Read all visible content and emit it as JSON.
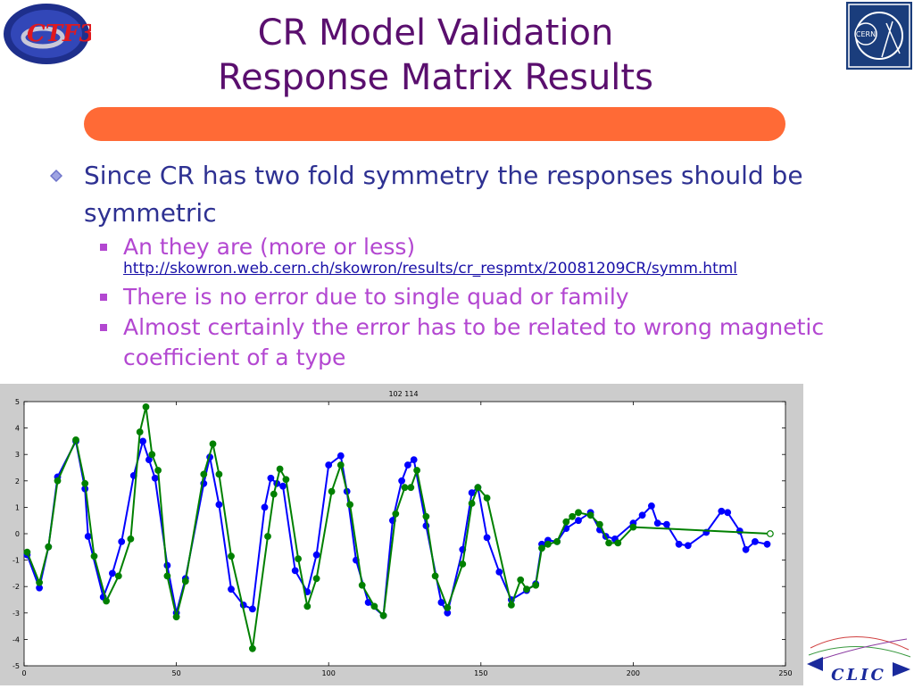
{
  "slide": {
    "title_line1": "CR Model Validation",
    "title_line2": "Response Matrix Results",
    "bullets": {
      "main": "Since CR has two fold symmetry the responses should be symmetric",
      "sub1": "An they are (more or less)",
      "sub1_link": "http://skowron.web.cern.ch/skowron/results/cr_respmtx/20081209CR/symm.html",
      "sub2": "There is no error due to single quad or family",
      "sub3": "Almost certainly the error has to be related to wrong magnetic coefficient of a type"
    },
    "logos": {
      "ctf": "CTF3",
      "cern": "CERN",
      "clic": "CLIC"
    },
    "colors": {
      "title": "#5a0f6e",
      "bar": "#ff6a36",
      "bullet_main": "#2e3192",
      "bullet_sub": "#b347d1"
    }
  },
  "chart_data": {
    "type": "line",
    "title": "102 114",
    "xlabel": "",
    "ylabel": "",
    "xlim": [
      0,
      250
    ],
    "ylim": [
      -5,
      5
    ],
    "xticks": [
      0,
      50,
      100,
      150,
      200,
      250
    ],
    "yticks": [
      -5,
      -4,
      -3,
      -2,
      -1,
      0,
      1,
      2,
      3,
      4,
      5
    ],
    "grid": false,
    "series": [
      {
        "color": "#0000ff",
        "x": [
          1,
          5,
          8,
          11,
          17,
          20,
          21,
          26,
          29,
          32,
          36,
          39,
          41,
          43,
          47,
          50,
          53,
          59,
          61,
          64,
          68,
          72,
          75,
          79,
          81,
          83,
          85,
          89,
          93,
          96,
          100,
          104,
          106,
          109,
          113,
          118,
          121,
          124,
          126,
          128,
          132,
          137,
          139,
          144,
          147,
          149,
          152,
          156,
          160,
          165,
          168,
          170,
          172,
          175,
          178,
          182,
          186,
          189,
          191,
          194,
          200,
          203,
          206,
          208,
          211,
          215,
          218,
          224,
          229,
          231,
          235,
          237,
          240,
          244
        ],
        "y": [
          -0.8,
          -2.05,
          -0.5,
          2.15,
          3.5,
          1.7,
          -0.1,
          -2.4,
          -1.5,
          -0.3,
          2.2,
          3.5,
          2.8,
          2.1,
          -1.2,
          -3.0,
          -1.7,
          1.9,
          2.9,
          1.1,
          -2.1,
          -2.7,
          -2.85,
          1.0,
          2.1,
          1.9,
          1.8,
          -1.4,
          -2.2,
          -0.8,
          2.6,
          2.95,
          1.6,
          -1.0,
          -2.6,
          -3.1,
          0.5,
          2.0,
          2.6,
          2.8,
          0.3,
          -2.6,
          -3.0,
          -0.6,
          1.55,
          1.75,
          -0.15,
          -1.45,
          -2.5,
          -2.15,
          -1.9,
          -0.4,
          -0.25,
          -0.3,
          0.2,
          0.5,
          0.8,
          0.15,
          -0.1,
          -0.2,
          0.4,
          0.7,
          1.05,
          0.4,
          0.35,
          -0.4,
          -0.45,
          0.05,
          0.85,
          0.8,
          0.1,
          -0.6,
          -0.3,
          -0.4
        ]
      },
      {
        "color": "#008000",
        "x": [
          1,
          5,
          8,
          11,
          17,
          20,
          23,
          27,
          31,
          35,
          38,
          40,
          42,
          44,
          47,
          50,
          53,
          59,
          62,
          64,
          68,
          75,
          80,
          82,
          84,
          86,
          90,
          93,
          96,
          101,
          104,
          107,
          111,
          115,
          118,
          122,
          125,
          127,
          129,
          132,
          135,
          139,
          144,
          147,
          149,
          152,
          160,
          163,
          165,
          168,
          170,
          172,
          175,
          178,
          180,
          182,
          186,
          189,
          192,
          195,
          200,
          245
        ],
        "y": [
          -0.7,
          -1.85,
          -0.5,
          2.0,
          3.55,
          1.9,
          -0.85,
          -2.55,
          -1.6,
          -0.2,
          3.85,
          4.8,
          3.0,
          2.4,
          -1.6,
          -3.15,
          -1.8,
          2.25,
          3.4,
          2.25,
          -0.85,
          -4.35,
          -0.1,
          1.5,
          2.45,
          2.05,
          -0.95,
          -2.75,
          -1.7,
          1.6,
          2.6,
          1.1,
          -1.95,
          -2.75,
          -3.1,
          0.75,
          1.75,
          1.75,
          2.4,
          0.65,
          -1.6,
          -2.8,
          -1.15,
          1.15,
          1.75,
          1.35,
          -2.7,
          -1.75,
          -2.1,
          -1.95,
          -0.55,
          -0.4,
          -0.3,
          0.45,
          0.65,
          0.8,
          0.7,
          0.35,
          -0.35,
          -0.35,
          0.25,
          0.0
        ]
      }
    ]
  }
}
